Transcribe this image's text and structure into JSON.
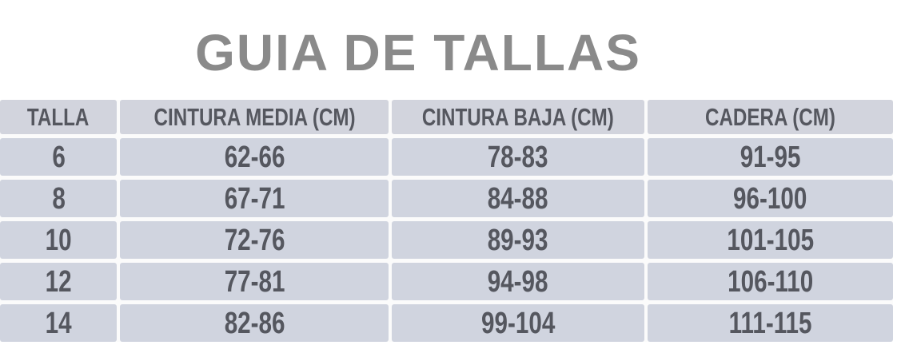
{
  "title": "GUIA DE TALLAS",
  "chart_data": {
    "type": "table",
    "title": "GUIA DE TALLAS",
    "columns": [
      "TALLA",
      "CINTURA MEDIA (CM)",
      "CINTURA BAJA (CM)",
      "CADERA (CM)"
    ],
    "rows": [
      [
        "6",
        "62-66",
        "78-83",
        "91-95"
      ],
      [
        "8",
        "67-71",
        "84-88",
        "96-100"
      ],
      [
        "10",
        "72-76",
        "89-93",
        "101-105"
      ],
      [
        "12",
        "77-81",
        "94-98",
        "106-110"
      ],
      [
        "14",
        "82-86",
        "99-104",
        "111-115"
      ]
    ],
    "units": "cm",
    "layout_hints": {
      "header_position": "top",
      "grid": "white gridlines between light blue-gray cells",
      "column_alignment": "center"
    }
  },
  "colors": {
    "page_bg": "#ffffff",
    "cell_bg": "#d0d4df",
    "header_bg": "#d2d4dd",
    "text": "#55575f",
    "title": "#8a8a8a",
    "grid_line": "#fbfbfb"
  }
}
